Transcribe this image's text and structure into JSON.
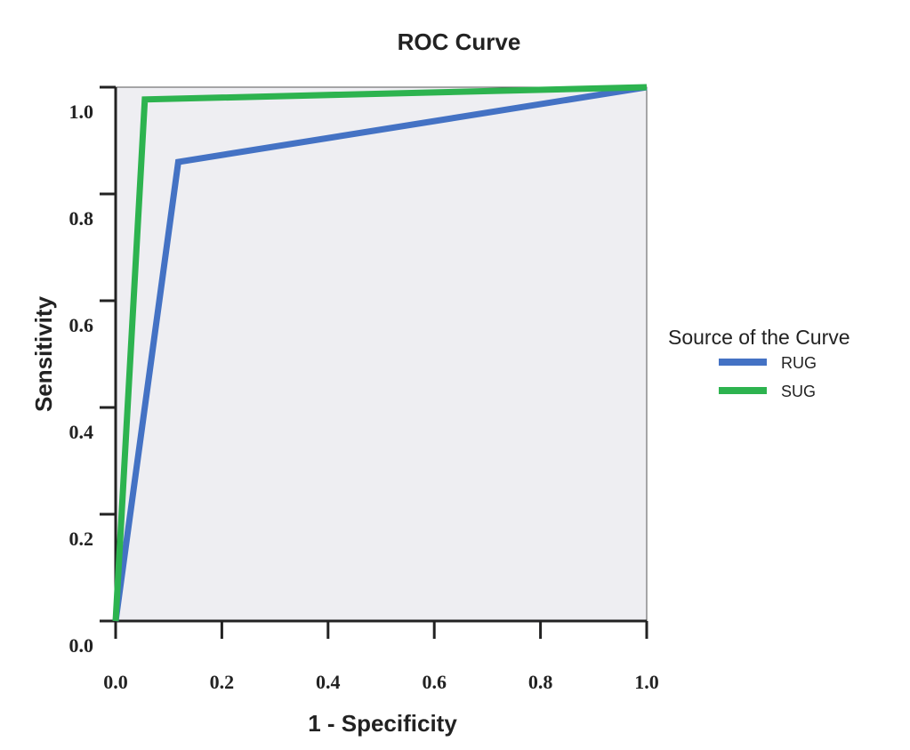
{
  "chart_data": {
    "type": "line",
    "title": "ROC Curve",
    "xlabel": "1 - Specificity",
    "ylabel": "Sensitivity",
    "xlim": [
      0,
      1
    ],
    "ylim": [
      0,
      1
    ],
    "x_ticks": [
      "0.0",
      "0.2",
      "0.4",
      "0.6",
      "0.8",
      "1.0"
    ],
    "y_ticks": [
      "0.0",
      "0.2",
      "0.4",
      "0.6",
      "0.8",
      "1.0"
    ],
    "grid": false,
    "background_color": "#eeeef2",
    "legend": {
      "title": "Source of the Curve",
      "position": "right"
    },
    "series": [
      {
        "name": "RUG",
        "color": "#4472c4",
        "points": [
          {
            "x": 0.0,
            "y": 0.0
          },
          {
            "x": 0.118,
            "y": 0.86
          },
          {
            "x": 1.0,
            "y": 1.0
          }
        ]
      },
      {
        "name": "SUG",
        "color": "#2db34f",
        "points": [
          {
            "x": 0.0,
            "y": 0.0
          },
          {
            "x": 0.055,
            "y": 0.977
          },
          {
            "x": 1.0,
            "y": 1.0
          }
        ]
      }
    ]
  }
}
